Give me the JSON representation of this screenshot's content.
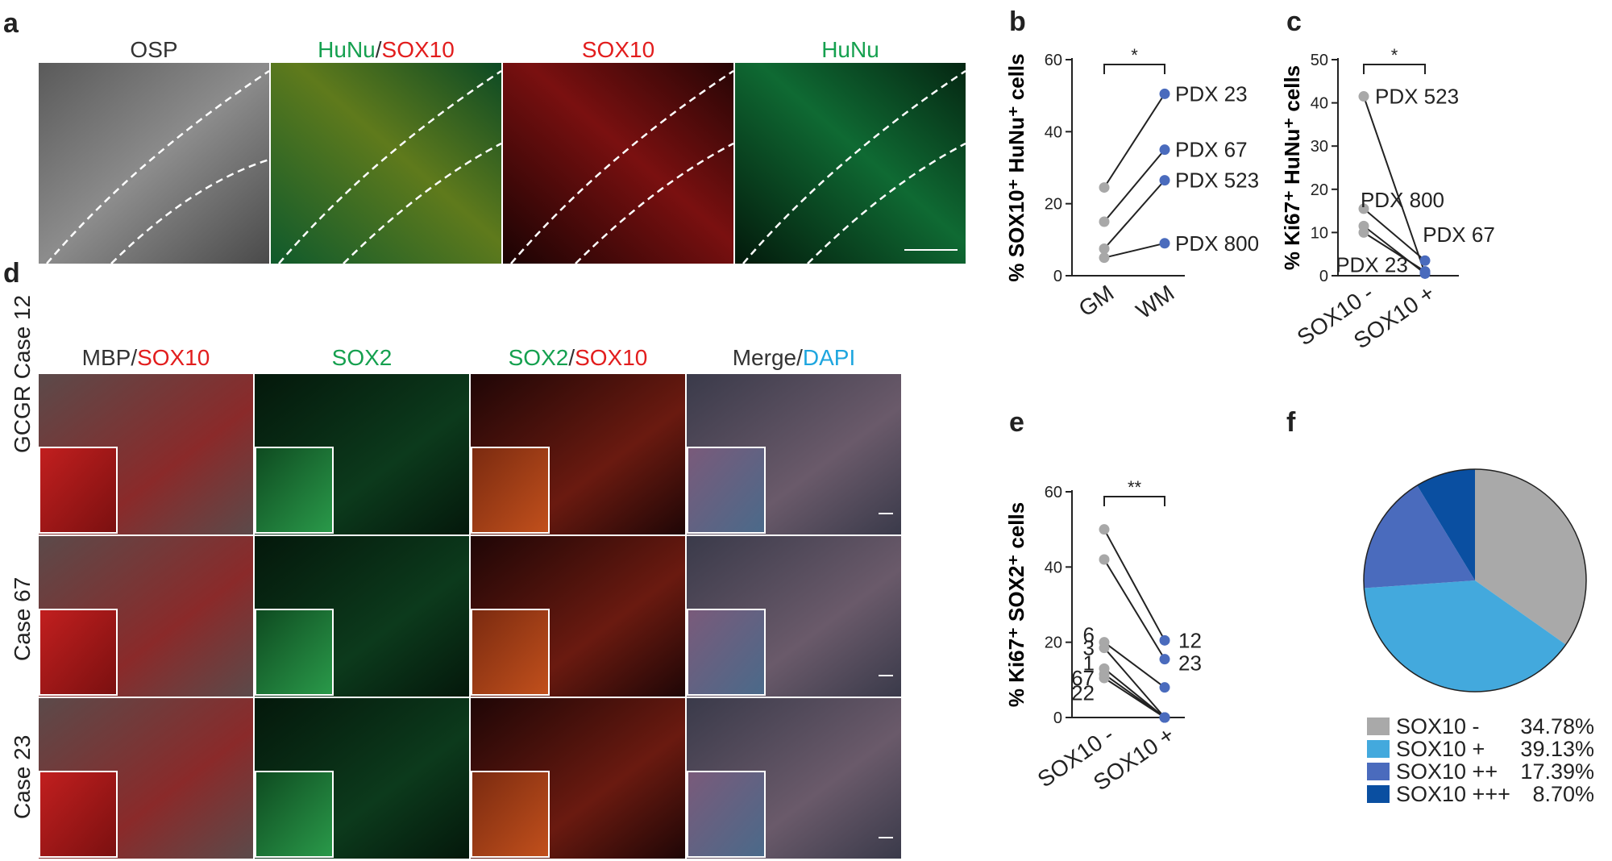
{
  "panel_a": {
    "letter": "a",
    "labels": [
      {
        "parts": [
          {
            "text": "OSP",
            "color": "#333333"
          }
        ]
      },
      {
        "parts": [
          {
            "text": "HuNu",
            "color": "#15a04f"
          },
          {
            "text": "/",
            "color": "#333333"
          },
          {
            "text": "SOX10",
            "color": "#e21d1d"
          }
        ]
      },
      {
        "parts": [
          {
            "text": "SOX10",
            "color": "#e21d1d"
          }
        ]
      },
      {
        "parts": [
          {
            "text": "HuNu",
            "color": "#15a04f"
          }
        ]
      }
    ]
  },
  "panel_d": {
    "letter": "d",
    "col_labels": [
      {
        "parts": [
          {
            "text": "MBP",
            "color": "#333333"
          },
          {
            "text": "/",
            "color": "#333333"
          },
          {
            "text": "SOX10",
            "color": "#e21d1d"
          }
        ]
      },
      {
        "parts": [
          {
            "text": "SOX2",
            "color": "#15a04f"
          }
        ]
      },
      {
        "parts": [
          {
            "text": "SOX2",
            "color": "#15a04f"
          },
          {
            "text": "/",
            "color": "#333333"
          },
          {
            "text": "SOX10",
            "color": "#e21d1d"
          }
        ]
      },
      {
        "parts": [
          {
            "text": "Merge",
            "color": "#333333"
          },
          {
            "text": "/",
            "color": "#333333"
          },
          {
            "text": "DAPI",
            "color": "#1ea6df"
          }
        ]
      }
    ],
    "row_labels": [
      "GCGR Case  12",
      "Case  67",
      "Case  23"
    ]
  },
  "chart_data": [
    {
      "panel": "b",
      "type": "scatter",
      "ylabel": "% SOX10⁺ HuNu⁺ cells",
      "categories": [
        "GM",
        "WM"
      ],
      "ylim": [
        0,
        60
      ],
      "yticks": [
        0,
        20,
        40,
        60
      ],
      "significance": "*",
      "series": [
        {
          "name": "PDX 23",
          "values": [
            24.5,
            50.5
          ]
        },
        {
          "name": "PDX 67",
          "values": [
            15,
            35
          ]
        },
        {
          "name": "PDX 523",
          "values": [
            7.5,
            26.5
          ]
        },
        {
          "name": "PDX 800",
          "values": [
            5,
            9
          ]
        }
      ],
      "colors": {
        "GM": "#a8a8a8",
        "WM": "#4a6bbd"
      }
    },
    {
      "panel": "c",
      "type": "scatter",
      "ylabel": "% Ki67⁺ HuNu⁺ cells",
      "categories": [
        "SOX10 -",
        "SOX10 +"
      ],
      "ylim": [
        0,
        50
      ],
      "yticks": [
        0,
        10,
        20,
        30,
        40,
        50
      ],
      "significance": "*",
      "series": [
        {
          "name": "PDX 523",
          "values": [
            41.5,
            0.5
          ]
        },
        {
          "name": "PDX 800",
          "values": [
            15.5,
            3.5
          ]
        },
        {
          "name": "PDX 67",
          "values": [
            11.5,
            0.5
          ]
        },
        {
          "name": "PDX 23",
          "values": [
            10,
            1
          ]
        }
      ],
      "point_labels": [
        "PDX 523",
        "PDX 800",
        "PDX 67",
        "PDX 23"
      ],
      "colors": {
        "SOX10 -": "#a8a8a8",
        "SOX10 +": "#4a6bbd"
      }
    },
    {
      "panel": "e",
      "type": "scatter",
      "ylabel": "% Ki67⁺ SOX2⁺ cells",
      "categories": [
        "SOX10 -",
        "SOX10 +"
      ],
      "ylim": [
        0,
        60
      ],
      "yticks": [
        0,
        20,
        40,
        60
      ],
      "significance": "**",
      "series": [
        {
          "name": "12",
          "values": [
            50,
            20.5
          ]
        },
        {
          "name": "23",
          "values": [
            42,
            15.5
          ]
        },
        {
          "name": "6",
          "values": [
            20,
            8
          ]
        },
        {
          "name": "3",
          "values": [
            18.5,
            0
          ]
        },
        {
          "name": "1",
          "values": [
            13,
            0
          ]
        },
        {
          "name": "67",
          "values": [
            11.5,
            0
          ]
        },
        {
          "name": "22",
          "values": [
            10.5,
            0
          ]
        }
      ],
      "point_labels_right": [
        "12",
        "23"
      ],
      "point_labels_left": [
        "6",
        "3",
        "1",
        "67",
        "22"
      ],
      "colors": {
        "SOX10 -": "#a8a8a8",
        "SOX10 +": "#4a6bbd"
      }
    },
    {
      "panel": "f",
      "type": "pie",
      "slices": [
        {
          "label": "SOX10 -",
          "value": 34.78,
          "pct_text": "34.78%",
          "color": "#a9a9a9"
        },
        {
          "label": "SOX10 +",
          "value": 39.13,
          "pct_text": "39.13%",
          "color": "#43a9dd"
        },
        {
          "label": "SOX10 ++",
          "value": 17.39,
          "pct_text": "17.39%",
          "color": "#4a6bbd"
        },
        {
          "label": "SOX10 +++",
          "value": 8.7,
          "pct_text": "8.70%",
          "color": "#0a4fa1"
        }
      ]
    }
  ],
  "letters": {
    "b": "b",
    "c": "c",
    "e": "e",
    "f": "f"
  }
}
